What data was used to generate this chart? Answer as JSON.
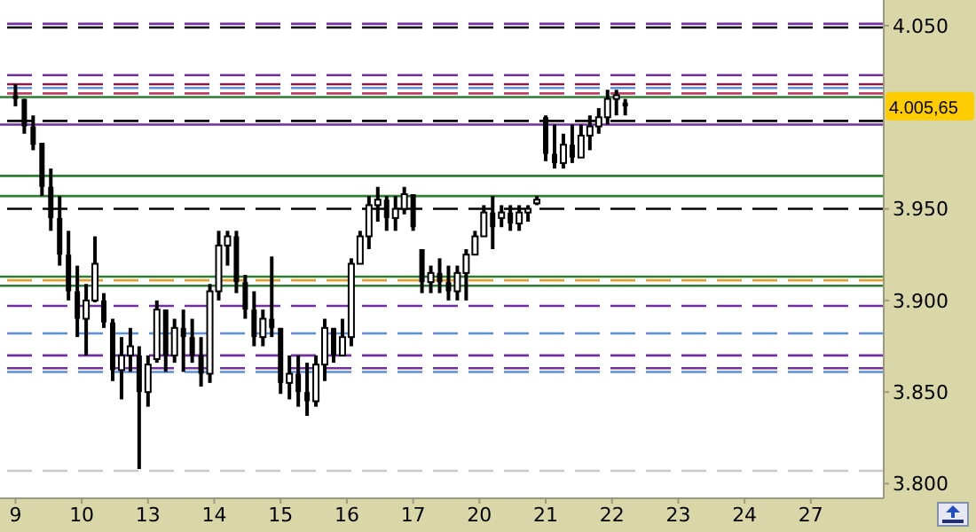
{
  "chart_data": {
    "type": "candlestick",
    "categories": [
      null,
      null,
      null,
      "9",
      null,
      null,
      null,
      null,
      null,
      null,
      null,
      null,
      null,
      null,
      null,
      null,
      null,
      null,
      "10",
      null,
      null,
      null,
      null,
      null,
      null,
      null,
      null,
      null,
      null,
      null,
      null,
      null,
      null,
      "13",
      null,
      null,
      null,
      null,
      null,
      null,
      null,
      null,
      null,
      null,
      null,
      null,
      null,
      null,
      "14",
      null,
      null,
      null,
      null,
      null,
      null,
      null,
      null,
      null,
      null,
      null,
      null,
      null,
      null,
      "15",
      null,
      null,
      null,
      null,
      null,
      null,
      null,
      null,
      null,
      null,
      null,
      null,
      null,
      null,
      "16",
      null,
      null,
      null,
      null,
      null,
      null,
      null,
      null,
      null,
      null,
      null,
      null,
      null,
      null,
      "17",
      null,
      null,
      null,
      null,
      null,
      null,
      null,
      null,
      null,
      null,
      null,
      null,
      null,
      null,
      "20",
      null,
      null,
      null,
      null,
      null,
      null,
      null,
      null,
      null,
      null,
      null,
      null,
      null,
      null,
      "21",
      null,
      null,
      null,
      null,
      null,
      null,
      null,
      null,
      null,
      null,
      null,
      null,
      null,
      null,
      "22",
      null,
      null,
      null,
      null,
      null,
      null,
      null,
      null,
      null,
      null,
      null,
      null,
      null,
      null,
      "23",
      null,
      null,
      null,
      null,
      null,
      null,
      null,
      null,
      null,
      null,
      null,
      null,
      null,
      null,
      "24",
      null,
      null,
      null,
      null,
      null,
      null,
      null,
      null,
      null,
      null,
      null,
      null,
      null,
      null,
      "27",
      null,
      null,
      null,
      null,
      null,
      null,
      null,
      null,
      null,
      null,
      null,
      null,
      null,
      null,
      null,
      null
    ],
    "ohlc": [
      null,
      null,
      null,
      [
        4012,
        4018,
        4006,
        4010
      ],
      null,
      [
        4010,
        4010,
        3991,
        3995
      ],
      null,
      [
        3995,
        4001,
        3982,
        3985
      ],
      null,
      [
        3986,
        3986,
        3957,
        3962
      ],
      null,
      [
        3962,
        3972,
        3938,
        3945
      ],
      null,
      [
        3945,
        3957,
        3919,
        3925
      ],
      null,
      [
        3925,
        3938,
        3900,
        3905
      ],
      null,
      [
        3905,
        3919,
        3880,
        3890
      ],
      null,
      [
        3890,
        3909,
        3870,
        3900
      ],
      null,
      [
        3900,
        3935,
        3899,
        3920
      ],
      null,
      [
        3900,
        3904,
        3885,
        3888
      ],
      null,
      [
        3888,
        3890,
        3856,
        3862
      ],
      null,
      [
        3862,
        3880,
        3846,
        3870
      ],
      null,
      [
        3870,
        3885,
        3861,
        3875
      ],
      null,
      [
        3870,
        3875,
        3808,
        3850
      ],
      null,
      [
        3850,
        3870,
        3842,
        3865
      ],
      null,
      [
        3868,
        3900,
        3866,
        3895
      ],
      null,
      [
        3895,
        3895,
        3861,
        3870
      ],
      null,
      [
        3870,
        3890,
        3866,
        3885
      ],
      null,
      [
        3885,
        3895,
        3861,
        3880
      ],
      null,
      [
        3880,
        3890,
        3866,
        3870
      ],
      null,
      [
        3870,
        3880,
        3853,
        3860
      ],
      null,
      [
        3860,
        3909,
        3855,
        3905
      ],
      null,
      [
        3905,
        3938,
        3900,
        3930
      ],
      null,
      [
        3930,
        3938,
        3919,
        3935
      ],
      null,
      [
        3935,
        3938,
        3904,
        3910
      ],
      null,
      [
        3910,
        3914,
        3890,
        3895
      ],
      null,
      [
        3895,
        3905,
        3875,
        3880
      ],
      null,
      [
        3880,
        3895,
        3875,
        3890
      ],
      null,
      [
        3890,
        3924,
        3880,
        3885
      ],
      null,
      [
        3885,
        3885,
        3849,
        3855
      ],
      null,
      [
        3855,
        3870,
        3846,
        3860
      ],
      null,
      [
        3860,
        3870,
        3842,
        3850
      ],
      null,
      [
        3850,
        3866,
        3837,
        3845
      ],
      null,
      [
        3845,
        3870,
        3842,
        3865
      ],
      null,
      [
        3865,
        3890,
        3856,
        3885
      ],
      null,
      [
        3885,
        3885,
        3866,
        3870
      ],
      null,
      [
        3870,
        3890,
        3870,
        3880
      ],
      null,
      [
        3880,
        3923,
        3875,
        3920
      ],
      null,
      [
        3920,
        3938,
        3920,
        3935
      ],
      null,
      [
        3935,
        3957,
        3928,
        3952
      ],
      null,
      [
        3952,
        3962,
        3943,
        3955
      ],
      null,
      [
        3955,
        3957,
        3938,
        3945
      ],
      null,
      [
        3945,
        3957,
        3938,
        3950
      ],
      null,
      [
        3950,
        3962,
        3947,
        3958
      ],
      null,
      [
        3958,
        3958,
        3938,
        3940
      ],
      null,
      [
        3928,
        3928,
        3904,
        3910
      ],
      null,
      [
        3910,
        3919,
        3904,
        3915
      ],
      null,
      [
        3915,
        3923,
        3904,
        3910
      ],
      null,
      [
        3910,
        3919,
        3900,
        3905
      ],
      null,
      [
        3905,
        3919,
        3900,
        3915
      ],
      null,
      [
        3915,
        3928,
        3900,
        3925
      ],
      null,
      [
        3925,
        3938,
        3925,
        3935
      ],
      null,
      [
        3935,
        3952,
        3935,
        3948
      ],
      null,
      [
        3948,
        3957,
        3928,
        3940
      ],
      null,
      [
        3945,
        3952,
        3940,
        3948
      ],
      null,
      [
        3948,
        3952,
        3938,
        3942
      ],
      null,
      [
        3942,
        3952,
        3938,
        3948
      ],
      null,
      [
        3948,
        3952,
        3943,
        3950
      ],
      null,
      [
        3953,
        3957,
        3952,
        3955
      ],
      null,
      [
        4000,
        4001,
        3976,
        3980
      ],
      null,
      [
        3980,
        3996,
        3972,
        3975
      ],
      null,
      [
        3975,
        3991,
        3972,
        3985
      ],
      null,
      [
        3985,
        3996,
        3975,
        3978
      ],
      null,
      [
        3978,
        3996,
        3978,
        3990
      ],
      null,
      [
        3990,
        4001,
        3982,
        3995
      ],
      null,
      [
        3995,
        4005,
        3991,
        4000
      ],
      null,
      [
        4000,
        4015,
        3996,
        4010
      ],
      null,
      [
        4010,
        4015,
        4001,
        4012
      ],
      null,
      [
        4008,
        4010,
        4001,
        4006
      ],
      null,
      null,
      null,
      null,
      null,
      null,
      null,
      null,
      null,
      null,
      null,
      null,
      null,
      null,
      null,
      null,
      null,
      null,
      null,
      null,
      null,
      null,
      null,
      null,
      null,
      null,
      null,
      null,
      null,
      null,
      null,
      null,
      null,
      null,
      null,
      null,
      null,
      null,
      null,
      null,
      null,
      null,
      null,
      null,
      null,
      null,
      null,
      null,
      null,
      null,
      null,
      null,
      null,
      null,
      null,
      null,
      null,
      null
    ],
    "color": "#000000",
    "ylim": [
      3792,
      4064
    ],
    "yticks": [
      {
        "value": 3800,
        "label": "3.800"
      },
      {
        "value": 3850,
        "label": "3.850"
      },
      {
        "value": 3900,
        "label": "3.900"
      },
      {
        "value": 3950,
        "label": "3.950"
      },
      {
        "value": 4050,
        "label": "4.050"
      }
    ],
    "annotations": [
      "4.005,65"
    ],
    "ref_lines": [
      {
        "axis": "y",
        "value": 4051,
        "color": "#7030a0",
        "line_style": "dashed"
      },
      {
        "axis": "y",
        "value": 4049,
        "color": "#000000",
        "line_style": "dashed"
      },
      {
        "axis": "y",
        "value": 4023,
        "color": "#7030a0",
        "line_style": "dashed"
      },
      {
        "axis": "y",
        "value": 4018,
        "color": "#8b1a4a",
        "line_style": "dashed"
      },
      {
        "axis": "y",
        "value": 4016,
        "color": "#5b8fd9",
        "line_style": "dashed"
      },
      {
        "axis": "y",
        "value": 4013,
        "color": "#c0406a",
        "line_style": "dashed"
      },
      {
        "axis": "y",
        "value": 4011,
        "color": "#2e7d32",
        "line_style": "solid"
      },
      {
        "axis": "y",
        "value": 3998,
        "color": "#000000",
        "line_style": "dashed"
      },
      {
        "axis": "y",
        "value": 3996,
        "color": "#7030a0",
        "line_style": "solid"
      },
      {
        "axis": "y",
        "value": 3968,
        "color": "#2e7d32",
        "line_style": "solid"
      },
      {
        "axis": "y",
        "value": 3957,
        "color": "#2e7d32",
        "line_style": "solid"
      },
      {
        "axis": "y",
        "value": 3950,
        "color": "#000000",
        "line_style": "dashed"
      },
      {
        "axis": "y",
        "value": 3913,
        "color": "#2e7d32",
        "line_style": "solid"
      },
      {
        "axis": "y",
        "value": 3911,
        "color": "#e0a030",
        "line_style": "dashed"
      },
      {
        "axis": "y",
        "value": 3908,
        "color": "#2e7d32",
        "line_style": "solid"
      },
      {
        "axis": "y",
        "value": 3897,
        "color": "#7030a0",
        "line_style": "dashed"
      },
      {
        "axis": "y",
        "value": 3882,
        "color": "#5b8fd9",
        "line_style": "dashed"
      },
      {
        "axis": "y",
        "value": 3870,
        "color": "#7030a0",
        "line_style": "dashed"
      },
      {
        "axis": "y",
        "value": 3863,
        "color": "#7030a0",
        "line_style": "dashed"
      },
      {
        "axis": "y",
        "value": 3861,
        "color": "#5b8fd9",
        "line_style": "dashed"
      },
      {
        "axis": "y",
        "value": 3807,
        "color": "#c8c8c8",
        "line_style": "dashed"
      }
    ]
  }
}
